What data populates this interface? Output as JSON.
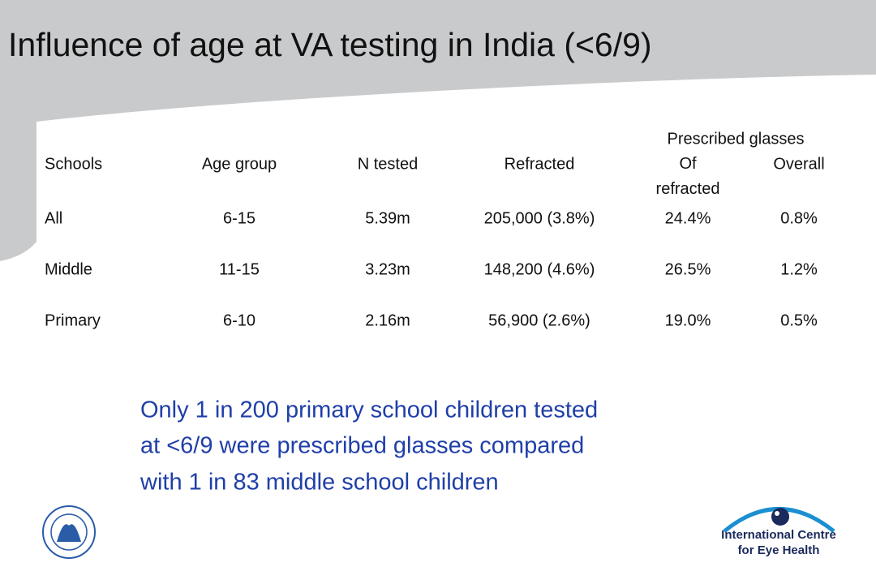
{
  "title": "Influence of age at VA testing in India (<6/9)",
  "table": {
    "group_header": "Prescribed glasses",
    "headers": [
      "Schools",
      "Age group",
      "N tested",
      "Refracted",
      "Of refracted",
      "Overall"
    ],
    "rows": [
      [
        "All",
        "6-15",
        "5.39m",
        "205,000 (3.8%)",
        "24.4%",
        "0.8%"
      ],
      [
        "Middle",
        "11-15",
        "3.23m",
        "148,200 (4.6%)",
        "26.5%",
        "1.2%"
      ],
      [
        "Primary",
        "6-10",
        "2.16m",
        "56,900 (2.6%)",
        "19.0%",
        "0.5%"
      ]
    ]
  },
  "note": {
    "lines": [
      "Only 1 in 200 primary school children tested",
      "at <6/9 were prescribed glasses compared",
      "with 1 in 83 middle school children"
    ]
  },
  "logo": {
    "lines": [
      "International Centre",
      "for Eye Health"
    ]
  }
}
